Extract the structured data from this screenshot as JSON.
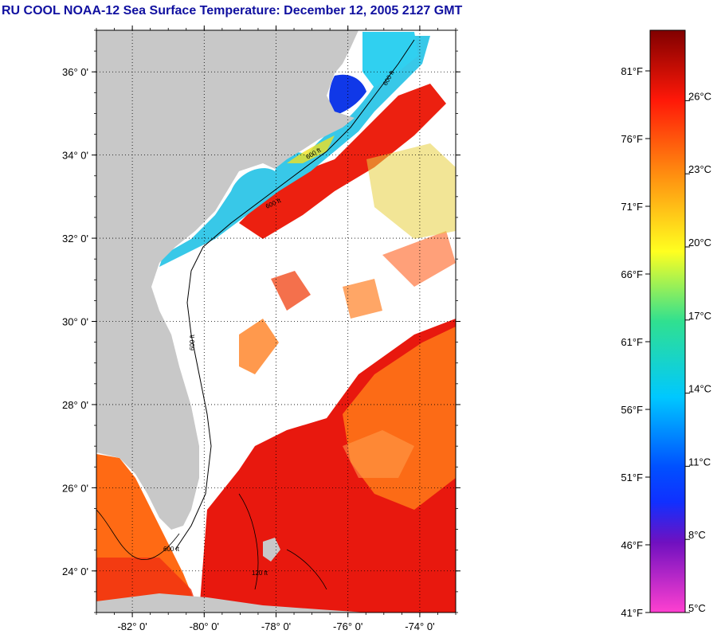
{
  "title": "RU COOL  NOAA-12  Sea Surface Temperature:  December 12, 2005 2127 GMT",
  "map": {
    "lon_range": [
      -83,
      -73
    ],
    "lat_range": [
      23,
      37
    ],
    "lat_ticks": [
      {
        "value": 36,
        "label": "36° 0'"
      },
      {
        "value": 34,
        "label": "34° 0'"
      },
      {
        "value": 32,
        "label": "32° 0'"
      },
      {
        "value": 30,
        "label": "30° 0'"
      },
      {
        "value": 28,
        "label": "28° 0'"
      },
      {
        "value": 26,
        "label": "26° 0'"
      },
      {
        "value": 24,
        "label": "24° 0'"
      }
    ],
    "lon_ticks": [
      {
        "value": -82,
        "label": "-82° 0'"
      },
      {
        "value": -80,
        "label": "-80° 0'"
      },
      {
        "value": -78,
        "label": "-78° 0'"
      },
      {
        "value": -76,
        "label": "-76° 0'"
      },
      {
        "value": -74,
        "label": "-74° 0'"
      }
    ],
    "contour_labels": [
      "600 ft",
      "600 ft",
      "600 ft",
      "600 ft",
      "600 ft",
      "120 ft"
    ],
    "colors": {
      "land": "#c8c8c8",
      "cloud": "#ffffff",
      "warm": "#e8140c",
      "orange": "#ff6a10",
      "cool": "#30c8f0",
      "cold": "#0030e0"
    }
  },
  "colorbar": {
    "f_labels": [
      "81°F",
      "76°F",
      "71°F",
      "66°F",
      "61°F",
      "56°F",
      "51°F",
      "46°F",
      "41°F"
    ],
    "c_labels": [
      "26°C",
      "23°C",
      "20°C",
      "17°C",
      "14°C",
      "11°C",
      "8°C",
      "5°C"
    ]
  }
}
